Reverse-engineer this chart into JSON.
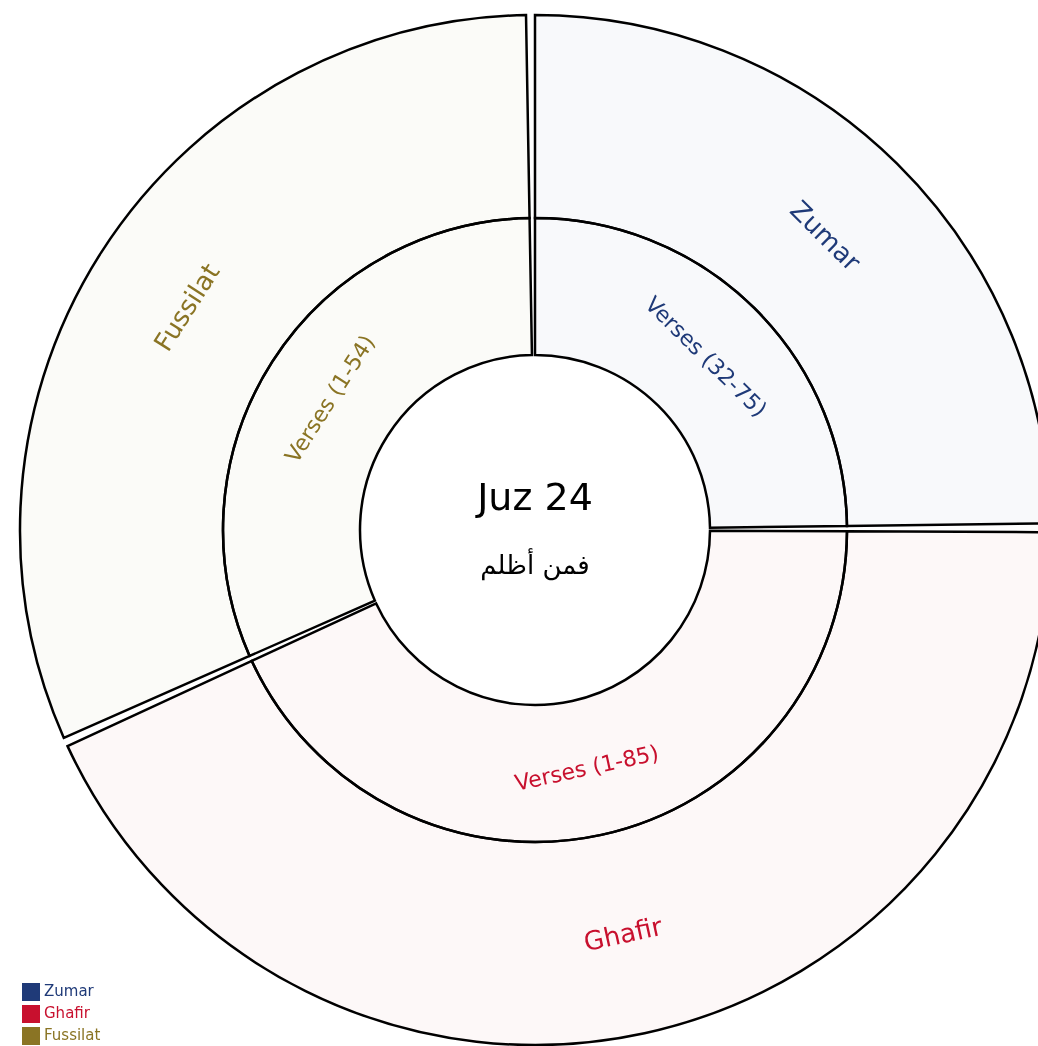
{
  "chart_data": {
    "type": "donut",
    "title": "Juz 24",
    "subtitle": "فمن أظلم",
    "categories": [
      "Zumar",
      "Ghafir",
      "Fussilat"
    ],
    "colors": [
      "#1f3a78",
      "#c8102e",
      "#8a7424"
    ],
    "series": [
      {
        "values": [
          25,
          43.4,
          31.6
        ],
        "value_labels": [
          "Verses (32-75)",
          "Verses (1-85)",
          "Verses (1-54)"
        ]
      },
      {
        "values": [
          25,
          43.4,
          31.6
        ]
      }
    ],
    "legend": "bottom left"
  }
}
